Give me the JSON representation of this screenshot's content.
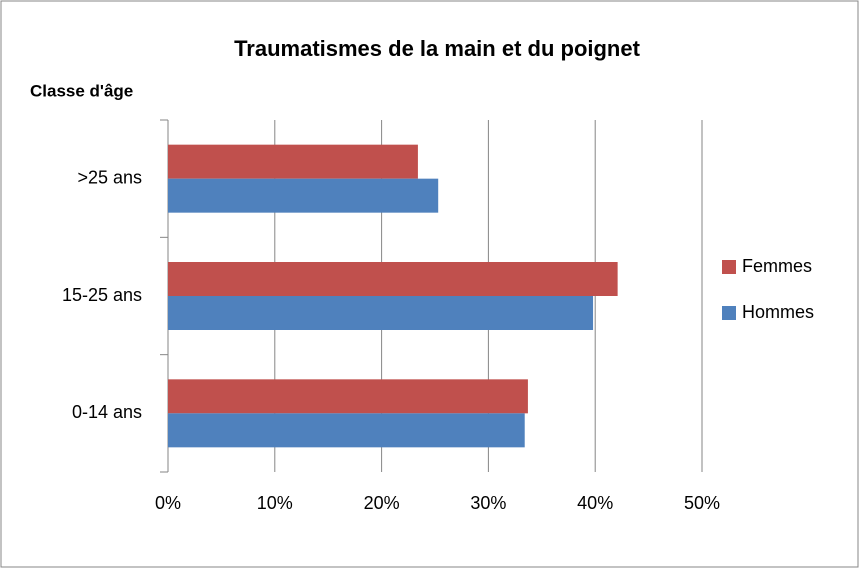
{
  "chart_data": {
    "type": "bar",
    "orientation": "horizontal",
    "title": "Traumatismes de la main et du poignet",
    "y_axis_label": "Classe d'âge",
    "categories": [
      "0-14 ans",
      "15-25 ans",
      ">25 ans"
    ],
    "series": [
      {
        "name": "Femmes",
        "color": "#c0504d",
        "values": [
          33.7,
          42.1,
          23.4
        ]
      },
      {
        "name": "Hommes",
        "color": "#4f81bd",
        "values": [
          33.4,
          39.8,
          25.3
        ]
      }
    ],
    "xlim": [
      0,
      50
    ],
    "xticks": [
      {
        "value": 0,
        "label": "0%"
      },
      {
        "value": 10,
        "label": "10%"
      },
      {
        "value": 20,
        "label": "20%"
      },
      {
        "value": 30,
        "label": "30%"
      },
      {
        "value": 40,
        "label": "40%"
      },
      {
        "value": 50,
        "label": "50%"
      }
    ],
    "grid": true,
    "legend": "right"
  }
}
